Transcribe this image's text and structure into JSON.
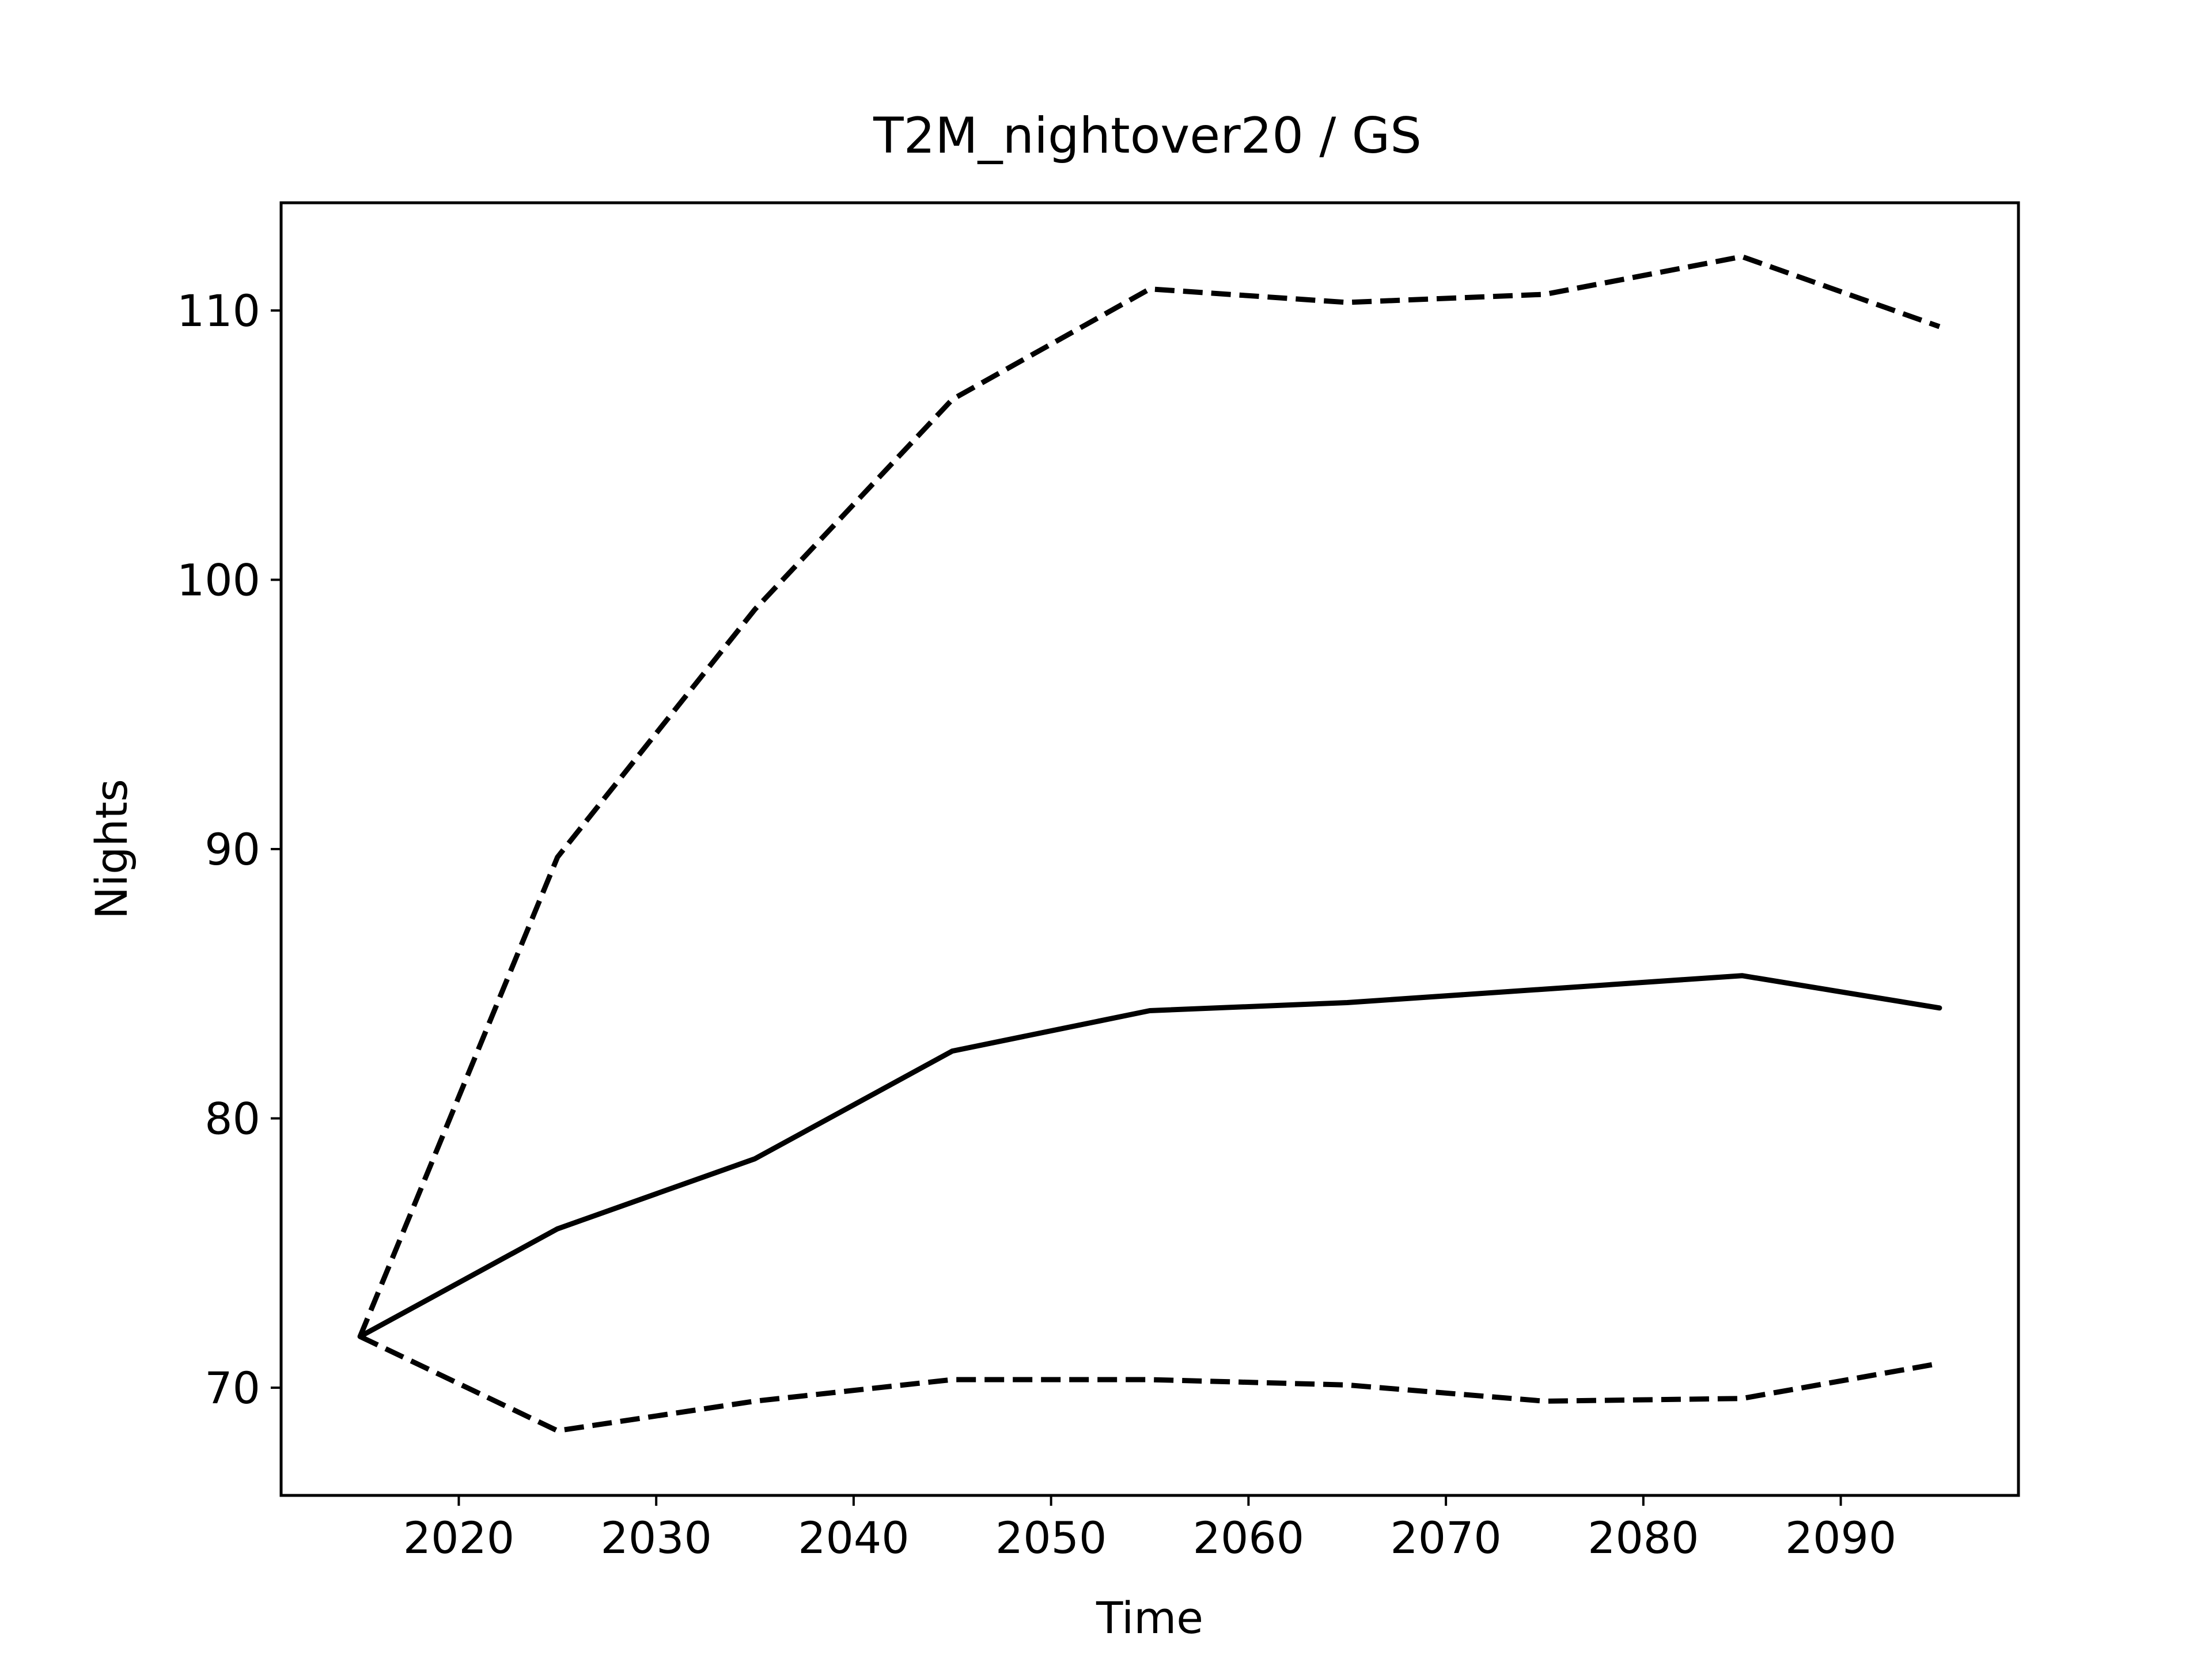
{
  "chart_data": {
    "type": "line",
    "title": "T2M_nightover20 / GS",
    "xlabel": "Time",
    "ylabel": "Nights",
    "x": [
      2015,
      2025,
      2035,
      2045,
      2055,
      2065,
      2075,
      2085,
      2095
    ],
    "xlim": [
      2011,
      2099
    ],
    "ylim": [
      66,
      114
    ],
    "xticks": [
      2020,
      2030,
      2040,
      2050,
      2060,
      2070,
      2080,
      2090
    ],
    "yticks": [
      70,
      80,
      90,
      100,
      110
    ],
    "grid": false,
    "series": [
      {
        "style": "dashed",
        "color": "#000000",
        "values": [
          71.9,
          89.7,
          98.9,
          106.7,
          110.8,
          110.3,
          110.6,
          112.0,
          109.4
        ]
      },
      {
        "style": "solid",
        "color": "#000000",
        "values": [
          71.9,
          75.9,
          78.5,
          82.5,
          84.0,
          84.3,
          84.8,
          85.3,
          84.1
        ]
      },
      {
        "style": "dashed",
        "color": "#000000",
        "values": [
          71.9,
          68.4,
          69.5,
          70.3,
          70.3,
          70.1,
          69.5,
          69.6,
          70.9
        ]
      }
    ]
  }
}
